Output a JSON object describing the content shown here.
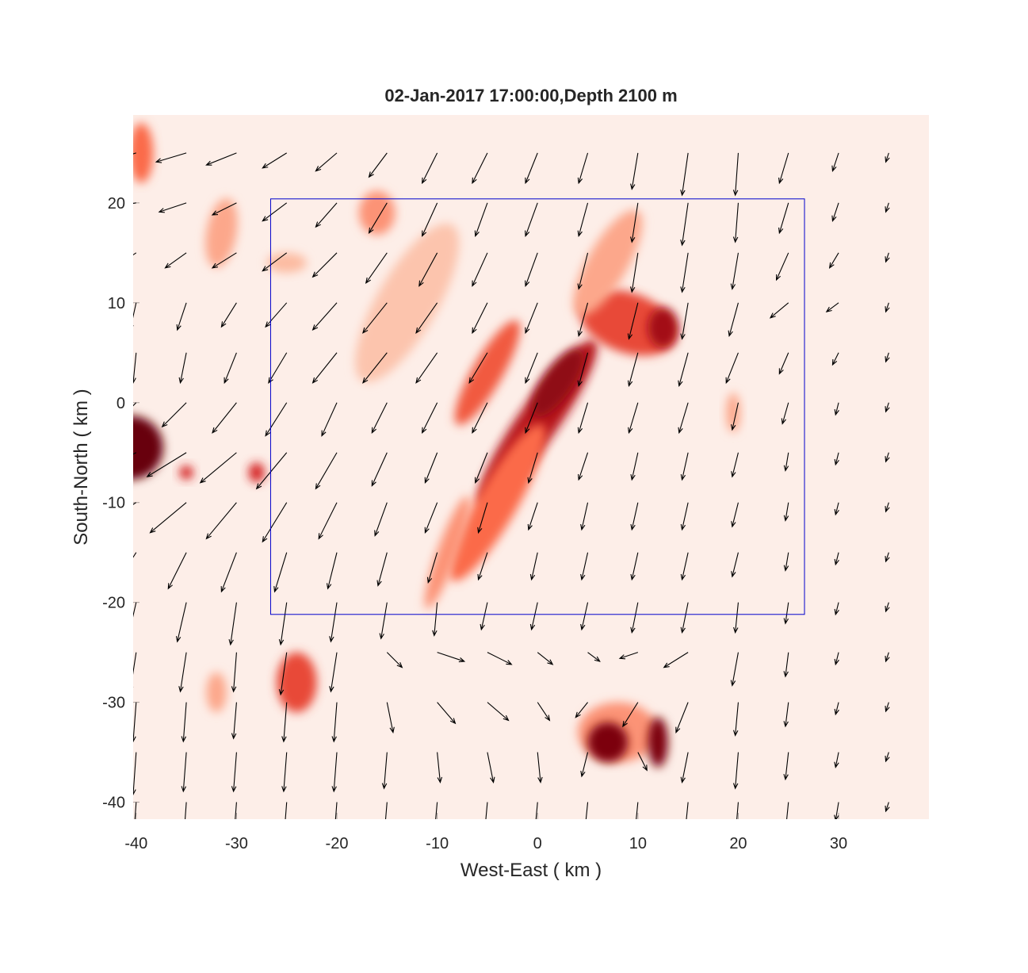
{
  "chart_data": {
    "type": "heatmap-quiver",
    "title": "02-Jan-2017 17:00:00,Depth 2100 m",
    "x_label": "West-East ( km )",
    "y_label": "South-North ( km )",
    "xlim": [
      -40.3,
      39
    ],
    "ylim": [
      -41.7,
      28.8
    ],
    "xticks": [
      -40,
      -30,
      -20,
      -10,
      0,
      10,
      20,
      30
    ],
    "yticks": [
      -40,
      -30,
      -20,
      -10,
      0,
      10,
      20
    ],
    "box": {
      "x": [
        -26.6,
        26.6
      ],
      "y": [
        -21.2,
        20.4
      ],
      "color": "#0000cc"
    },
    "heat": [
      {
        "x": -40.5,
        "y": -4.5,
        "sx": 3.2,
        "sy": 3.2,
        "rot": 0,
        "v": 1
      },
      {
        "x": -39.5,
        "y": 25,
        "sx": 1.2,
        "sy": 3,
        "rot": 0,
        "v": 0.5
      },
      {
        "x": -31.5,
        "y": 17,
        "sx": 1.5,
        "sy": 3.5,
        "rot": 10,
        "v": 0.35
      },
      {
        "x": -25,
        "y": 14,
        "sx": 2,
        "sy": 1,
        "rot": 0,
        "v": 0.3
      },
      {
        "x": -16,
        "y": 19,
        "sx": 1.8,
        "sy": 2.2,
        "rot": 0,
        "v": 0.4
      },
      {
        "x": -13,
        "y": 10,
        "sx": 3,
        "sy": 9,
        "rot": 30,
        "v": 0.25
      },
      {
        "x": -5,
        "y": 3,
        "sx": 1.5,
        "sy": 6,
        "rot": 30,
        "v": 0.55
      },
      {
        "x": 0,
        "y": -2,
        "sx": 2,
        "sy": 10,
        "rot": 35,
        "v": 0.8
      },
      {
        "x": 2,
        "y": 2,
        "sx": 1.5,
        "sy": 4,
        "rot": 35,
        "v": 0.9
      },
      {
        "x": -4,
        "y": -10,
        "sx": 2,
        "sy": 9,
        "rot": 30,
        "v": 0.5
      },
      {
        "x": 9,
        "y": 8,
        "sx": 5,
        "sy": 3,
        "rot": 20,
        "v": 0.6
      },
      {
        "x": 12.5,
        "y": 7.5,
        "sx": 1.5,
        "sy": 2,
        "rot": 0,
        "v": 0.85
      },
      {
        "x": 7,
        "y": 14,
        "sx": 2,
        "sy": 6,
        "rot": 30,
        "v": 0.35
      },
      {
        "x": -9,
        "y": -15,
        "sx": 1,
        "sy": 6,
        "rot": 20,
        "v": 0.4
      },
      {
        "x": -24,
        "y": -28,
        "sx": 2,
        "sy": 3,
        "rot": 0,
        "v": 0.6
      },
      {
        "x": -32,
        "y": -29,
        "sx": 1,
        "sy": 2,
        "rot": 0,
        "v": 0.35
      },
      {
        "x": 8,
        "y": -33,
        "sx": 4,
        "sy": 3,
        "rot": 0,
        "v": 0.4
      },
      {
        "x": 7,
        "y": -34,
        "sx": 2,
        "sy": 2,
        "rot": 0,
        "v": 0.95
      },
      {
        "x": 12,
        "y": -34,
        "sx": 1,
        "sy": 2.5,
        "rot": 0,
        "v": 0.95
      },
      {
        "x": -35,
        "y": -7,
        "sx": 0.7,
        "sy": 0.7,
        "rot": 0,
        "v": 0.7
      },
      {
        "x": -28,
        "y": -7,
        "sx": 0.8,
        "sy": 1,
        "rot": 0,
        "v": 0.7
      },
      {
        "x": 19.5,
        "y": -1,
        "sx": 0.7,
        "sy": 2,
        "rot": 0,
        "v": 0.35
      }
    ],
    "quiver": {
      "x": [
        -40,
        -35,
        -30,
        -25,
        -20,
        -15,
        -10,
        -5,
        0,
        5,
        10,
        15,
        20,
        25,
        30,
        35
      ],
      "y": [
        25,
        20,
        15,
        10,
        5,
        0,
        -5,
        -10,
        -15,
        -20,
        -25,
        -30,
        -35,
        -40
      ],
      "u": [
        [
          -1,
          -1,
          -1,
          -0.8,
          -0.7,
          -0.6,
          -0.5,
          -0.5,
          -0.4,
          -0.3,
          -0.2,
          -0.2,
          -0.1,
          -0.3,
          -0.2,
          -0.1
        ],
        [
          -1,
          -0.9,
          -0.8,
          -0.8,
          -0.7,
          -0.6,
          -0.5,
          -0.4,
          -0.4,
          -0.3,
          -0.2,
          -0.2,
          -0.1,
          -0.3,
          -0.2,
          -0.1
        ],
        [
          -0.6,
          -0.7,
          -0.8,
          -0.8,
          -0.8,
          -0.7,
          -0.6,
          -0.5,
          -0.4,
          -0.3,
          -0.2,
          -0.2,
          -0.2,
          -0.4,
          -0.3,
          -0.1
        ],
        [
          -0.2,
          -0.3,
          -0.5,
          -0.7,
          -0.8,
          -0.8,
          -0.7,
          -0.5,
          -0.4,
          -0.3,
          -0.3,
          -0.2,
          -0.3,
          -0.6,
          -0.4,
          -0.1
        ],
        [
          -0.1,
          -0.2,
          -0.4,
          -0.6,
          -0.8,
          -0.8,
          -0.7,
          -0.6,
          -0.4,
          -0.3,
          -0.3,
          -0.3,
          -0.4,
          -0.3,
          -0.2,
          -0.1
        ],
        [
          -0.6,
          -0.8,
          -0.8,
          -0.7,
          -0.5,
          -0.5,
          -0.5,
          -0.5,
          -0.4,
          -0.3,
          -0.3,
          -0.3,
          -0.2,
          -0.2,
          -0.1,
          -0.1
        ],
        [
          -1.4,
          -1.3,
          -1.2,
          -1,
          -0.7,
          -0.5,
          -0.4,
          -0.4,
          -0.3,
          -0.3,
          -0.2,
          -0.2,
          -0.2,
          -0.1,
          -0.1,
          -0.1
        ],
        [
          -1.3,
          -1.2,
          -1,
          -0.8,
          -0.6,
          -0.4,
          -0.4,
          -0.3,
          -0.3,
          -0.2,
          -0.2,
          -0.2,
          -0.2,
          -0.1,
          -0.1,
          -0.1
        ],
        [
          -0.7,
          -0.6,
          -0.5,
          -0.4,
          -0.3,
          -0.3,
          -0.3,
          -0.3,
          -0.2,
          -0.2,
          -0.2,
          -0.2,
          -0.2,
          -0.1,
          -0.1,
          -0.1
        ],
        [
          -0.3,
          -0.3,
          -0.2,
          -0.2,
          -0.2,
          -0.2,
          -0.1,
          -0.2,
          -0.2,
          -0.2,
          -0.2,
          -0.2,
          -0.1,
          -0.1,
          -0.1,
          -0.1
        ],
        [
          -0.2,
          -0.2,
          -0.1,
          -0.2,
          -0.2,
          0.5,
          0.9,
          0.8,
          0.5,
          0.4,
          -0.6,
          -0.8,
          -0.2,
          -0.1,
          -0.1,
          -0.1
        ],
        [
          -0.1,
          -0.1,
          -0.1,
          -0.1,
          -0.1,
          0.2,
          0.6,
          0.7,
          0.4,
          -0.4,
          -0.5,
          -0.4,
          -0.1,
          -0.1,
          -0.1,
          -0.1
        ],
        [
          -0.1,
          -0.1,
          -0.1,
          -0.1,
          -0.1,
          -0.1,
          0.1,
          0.2,
          0.1,
          -0.2,
          0.3,
          -0.2,
          -0.1,
          -0.1,
          -0.1,
          -0.1
        ],
        [
          -0.1,
          -0.1,
          -0.1,
          -0.1,
          -0.1,
          -0.1,
          -0.1,
          -0.1,
          -0.1,
          -0.1,
          -0.1,
          -0.1,
          -0.1,
          -0.1,
          -0.1,
          -0.1
        ]
      ],
      "v": [
        [
          -0.3,
          -0.3,
          -0.4,
          -0.5,
          -0.6,
          -0.8,
          -1,
          -1,
          -1,
          -1,
          -1.2,
          -1.4,
          -1.4,
          -1,
          -0.6,
          -0.3
        ],
        [
          -0.2,
          -0.3,
          -0.4,
          -0.6,
          -0.8,
          -1,
          -1.1,
          -1.1,
          -1.1,
          -1.1,
          -1.3,
          -1.4,
          -1.3,
          -1,
          -0.6,
          -0.3
        ],
        [
          -0.4,
          -0.5,
          -0.5,
          -0.6,
          -0.8,
          -1,
          -1.1,
          -1.1,
          -1.1,
          -1.2,
          -1.3,
          -1.3,
          -1.2,
          -0.9,
          -0.5,
          -0.3
        ],
        [
          -0.9,
          -0.9,
          -0.8,
          -0.8,
          -0.9,
          -1,
          -1,
          -1,
          -1,
          -1.1,
          -1.2,
          -1.2,
          -1.1,
          -0.5,
          -0.3,
          -0.3
        ],
        [
          -1,
          -1,
          -1,
          -1,
          -1,
          -1,
          -1,
          -1,
          -1,
          -1.1,
          -1.1,
          -1.1,
          -1,
          -0.7,
          -0.4,
          -0.3
        ],
        [
          -0.6,
          -0.8,
          -1,
          -1.1,
          -1.1,
          -1,
          -1,
          -1,
          -1,
          -1,
          -1,
          -1,
          -0.9,
          -0.7,
          -0.4,
          -0.3
        ],
        [
          -0.7,
          -0.8,
          -1,
          -1.2,
          -1.2,
          -1.1,
          -1,
          -1,
          -1,
          -0.9,
          -0.9,
          -0.9,
          -0.8,
          -0.6,
          -0.4,
          -0.3
        ],
        [
          -0.8,
          -1,
          -1.2,
          -1.3,
          -1.2,
          -1.1,
          -1,
          -1,
          -0.9,
          -0.9,
          -0.9,
          -0.9,
          -0.8,
          -0.6,
          -0.4,
          -0.3
        ],
        [
          -1.1,
          -1.2,
          -1.3,
          -1.3,
          -1.2,
          -1.1,
          -1,
          -0.9,
          -0.9,
          -0.9,
          -0.9,
          -0.9,
          -0.8,
          -0.6,
          -0.4,
          -0.3
        ],
        [
          -1.3,
          -1.3,
          -1.4,
          -1.4,
          -1.3,
          -1.2,
          -1.1,
          -0.9,
          -0.9,
          -0.9,
          -1,
          -1,
          -1,
          -0.7,
          -0.4,
          -0.3
        ],
        [
          -1.3,
          -1.3,
          -1.3,
          -1.4,
          -1.3,
          -0.5,
          -0.3,
          -0.4,
          -0.4,
          -0.3,
          -0.2,
          -0.5,
          -1.1,
          -0.8,
          -0.4,
          -0.3
        ],
        [
          -1.3,
          -1.3,
          -1.2,
          -1.3,
          -1.3,
          -1,
          -0.7,
          -0.6,
          -0.6,
          -0.5,
          -0.8,
          -1,
          -1.1,
          -0.8,
          -0.4,
          -0.3
        ],
        [
          -1.4,
          -1.3,
          -1.3,
          -1.3,
          -1.3,
          -1.2,
          -1,
          -1,
          -1,
          -0.8,
          -0.6,
          -1,
          -1.2,
          -0.9,
          -0.5,
          -0.3
        ],
        [
          -1.4,
          -1.4,
          -1.3,
          -1.3,
          -1.3,
          -1.2,
          -1.1,
          -1.1,
          -1.1,
          -1,
          -1,
          -1,
          -1.2,
          -1,
          -0.6,
          -0.3
        ]
      ]
    }
  }
}
